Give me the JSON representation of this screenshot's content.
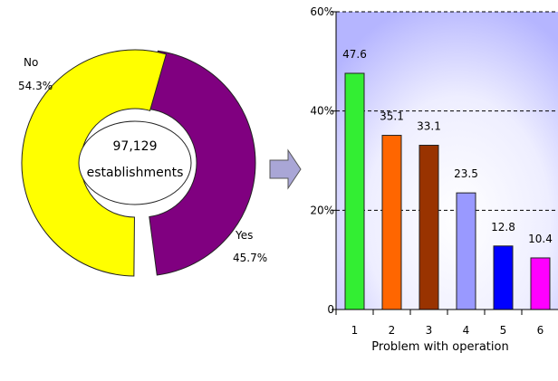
{
  "chart_data": [
    {
      "type": "pie",
      "center_label": [
        "97,129",
        "establishments"
      ],
      "slices": [
        {
          "label": "No",
          "value": 54.3,
          "value_label": "54.3%",
          "color": "#ffff00"
        },
        {
          "label": "Yes",
          "value": 45.7,
          "value_label": "45.7%",
          "color": "#800080"
        }
      ]
    },
    {
      "type": "bar",
      "title": "",
      "xlabel": "Problem with operation",
      "ylabel": "",
      "categories": [
        "1",
        "2",
        "3",
        "4",
        "5",
        "6"
      ],
      "values": [
        47.6,
        35.1,
        33.1,
        23.5,
        12.8,
        10.4
      ],
      "value_labels": [
        "47.6",
        "35.1",
        "33.1",
        "23.5",
        "12.8",
        "10.4"
      ],
      "colors": [
        "#33ee33",
        "#ff6600",
        "#993300",
        "#9999ff",
        "#0000ff",
        "#ff00ff"
      ],
      "ylim": [
        0,
        60
      ],
      "yticks": [
        0,
        20,
        40,
        60
      ],
      "ytick_labels": [
        "0",
        "20%",
        "40%",
        "60%"
      ],
      "grid": true
    }
  ],
  "colors": {
    "arrow_fill": "#a9a6d6",
    "arrow_stroke": "#555555",
    "plot_bg_edge": "#b5b5ff",
    "plot_bg_center": "#ffffff"
  }
}
